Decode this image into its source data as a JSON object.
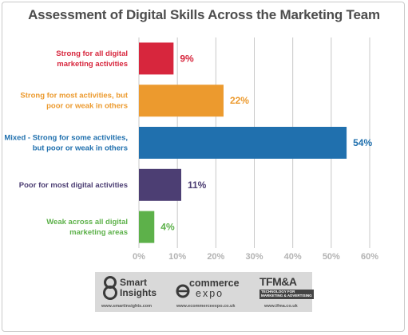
{
  "chart_data": {
    "type": "bar",
    "orientation": "horizontal",
    "title": "Assessment of Digital Skills Across the Marketing Team",
    "categories": [
      [
        "Strong for all digital",
        "marketing activities"
      ],
      [
        "Strong for most activities, but",
        "poor or weak in others"
      ],
      [
        "Mixed - Strong for some activities,",
        "but poor or weak in others"
      ],
      [
        "Poor for most digital activities"
      ],
      [
        "Weak across all digital",
        "marketing areas"
      ]
    ],
    "values": [
      9,
      22,
      54,
      11,
      4
    ],
    "data_labels": [
      "9%",
      "22%",
      "54%",
      "11%",
      "4%"
    ],
    "colors": [
      "#d7263d",
      "#ec9a2e",
      "#2070ae",
      "#4c3e73",
      "#5db14a"
    ],
    "xlim": [
      0,
      60
    ],
    "xticks": [
      0,
      10,
      20,
      30,
      40,
      50,
      60
    ],
    "xtick_labels": [
      "0%",
      "10%",
      "20%",
      "30%",
      "40%",
      "50%",
      "60%"
    ],
    "grid": true,
    "legend": "none"
  },
  "logos": {
    "smart_insights": {
      "name_line1": "Smart",
      "name_line2": "Insights",
      "url": "www.smartinsights.com"
    },
    "commerce_expo": {
      "name_line1": "commerce",
      "name_line2": "expo",
      "url": "www.ecommerceexpo.co.uk"
    },
    "tfm": {
      "name": "TFM&A",
      "tagline_line1": "TECHNOLOGY FOR",
      "tagline_line2": "MARKETING & ADVERTISING",
      "url": "www.tfma.co.uk"
    }
  }
}
